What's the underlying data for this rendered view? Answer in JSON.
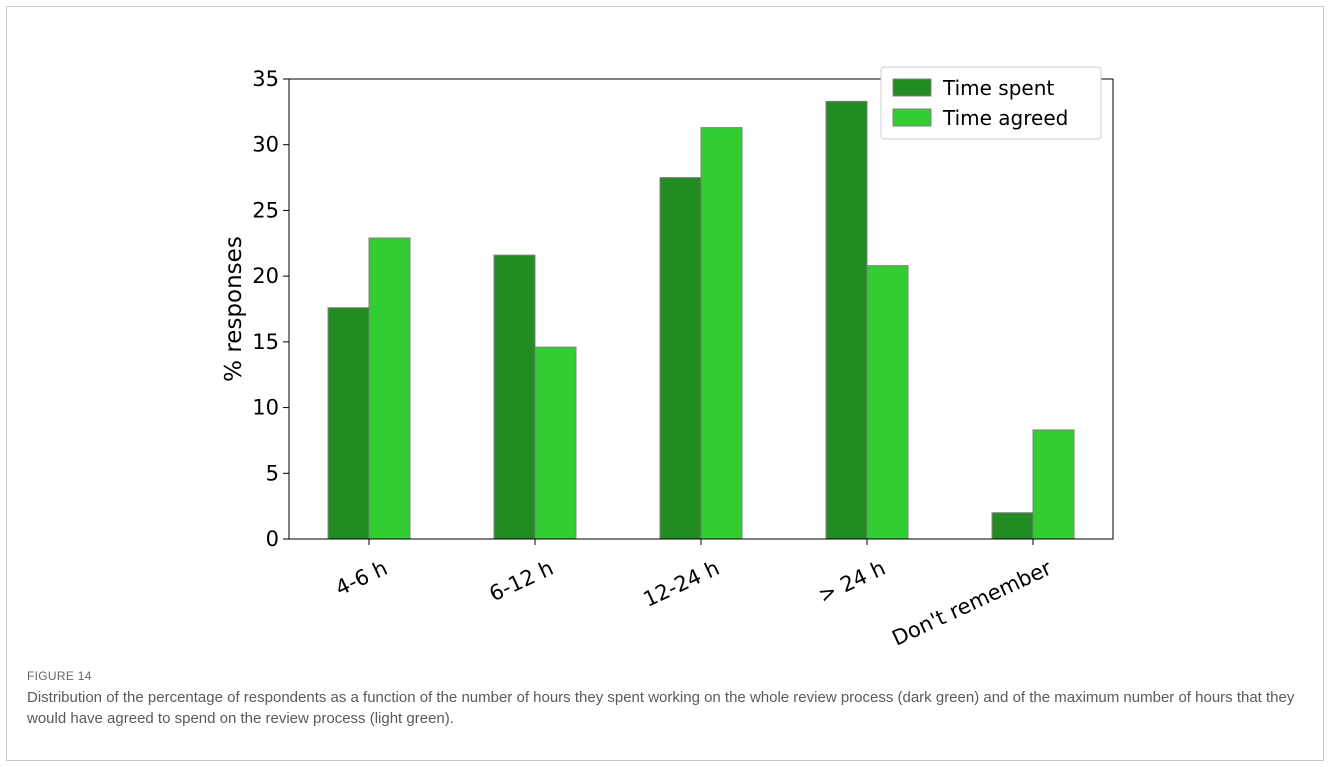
{
  "figure": {
    "label": "FIGURE 14",
    "caption": "Distribution of the percentage of respondents as a function of the number of hours they spent working on the whole review process (dark green) and of the maximum number of hours that they would have agreed to spend on the review process (light green)."
  },
  "colors": {
    "time_spent": "#228b22",
    "time_agreed": "#32cd32"
  },
  "chart_data": {
    "type": "bar",
    "categories": [
      "4-6 h",
      "6-12 h",
      "12-24 h",
      "> 24 h",
      "Don't remember"
    ],
    "series": [
      {
        "name": "Time spent",
        "values": [
          17.6,
          21.6,
          27.5,
          33.3,
          2.0
        ]
      },
      {
        "name": "Time agreed",
        "values": [
          22.9,
          14.6,
          31.3,
          20.8,
          8.3
        ]
      }
    ],
    "ylabel": "% responses",
    "xlabel": "",
    "ylim": [
      0,
      35
    ],
    "yticks": [
      0,
      5,
      10,
      15,
      20,
      25,
      30,
      35
    ],
    "legend": "top-right",
    "grid": false
  }
}
